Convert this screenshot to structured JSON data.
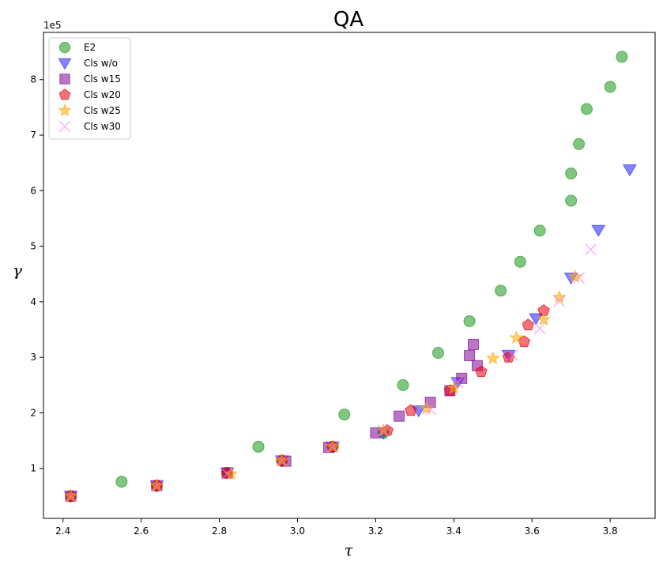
{
  "chart_data": {
    "type": "scatter",
    "title": "QA",
    "xlabel": "τ",
    "ylabel": "γ",
    "y_offset_label": "1e5",
    "xlim": [
      2.35,
      3.915
    ],
    "ylim": [
      0.1,
      8.85
    ],
    "x_ticks": [
      2.4,
      2.6,
      2.8,
      3.0,
      3.2,
      3.4,
      3.6,
      3.8
    ],
    "x_tick_labels": [
      "2.4",
      "2.6",
      "2.8",
      "3.0",
      "3.2",
      "3.4",
      "3.6",
      "3.8"
    ],
    "y_ticks": [
      1,
      2,
      3,
      4,
      5,
      6,
      7,
      8
    ],
    "y_tick_labels": [
      "1",
      "2",
      "3",
      "4",
      "5",
      "6",
      "7",
      "8"
    ],
    "grid": false,
    "legend_position": "upper-left",
    "series": [
      {
        "name": "E2",
        "marker": "circle",
        "color": "#2ca02c",
        "alpha": 0.6,
        "x": [
          2.42,
          2.55,
          2.64,
          2.82,
          2.9,
          2.96,
          3.09,
          3.12,
          3.22,
          3.27,
          3.36,
          3.44,
          3.52,
          3.57,
          3.62,
          3.7,
          3.7,
          3.72,
          3.74,
          3.8,
          3.83
        ],
        "y": [
          0.5,
          0.76,
          0.69,
          0.92,
          1.39,
          1.14,
          1.39,
          1.97,
          1.64,
          2.5,
          3.08,
          3.65,
          4.2,
          4.72,
          5.28,
          5.82,
          6.31,
          6.84,
          7.47,
          7.87,
          8.41
        ]
      },
      {
        "name": "Cls w/o",
        "marker": "triangle-down",
        "color": "#3333ff",
        "alpha": 0.6,
        "x": [
          2.42,
          2.64,
          2.82,
          2.96,
          3.09,
          3.22,
          3.31,
          3.41,
          3.54,
          3.61,
          3.7,
          3.77,
          3.85
        ],
        "y": [
          0.5,
          0.69,
          0.92,
          1.14,
          1.39,
          1.64,
          2.04,
          2.55,
          3.04,
          3.7,
          4.43,
          5.29,
          6.38
        ]
      },
      {
        "name": "Cls w15",
        "marker": "square",
        "color": "#8b1a9c",
        "alpha": 0.6,
        "x": [
          2.42,
          2.64,
          2.82,
          2.97,
          3.08,
          3.2,
          3.26,
          3.34,
          3.39,
          3.42,
          3.44,
          3.45,
          3.46
        ],
        "y": [
          0.5,
          0.69,
          0.92,
          1.13,
          1.38,
          1.64,
          1.94,
          2.19,
          2.4,
          2.62,
          3.03,
          3.23,
          2.85
        ]
      },
      {
        "name": "Cls w20",
        "marker": "pentagon",
        "color": "#e8000b",
        "alpha": 0.55,
        "x": [
          2.42,
          2.64,
          2.82,
          2.96,
          3.09,
          3.23,
          3.29,
          3.39,
          3.47,
          3.54,
          3.58,
          3.59,
          3.63
        ],
        "y": [
          0.5,
          0.69,
          0.91,
          1.14,
          1.39,
          1.68,
          2.04,
          2.4,
          2.74,
          3.0,
          3.28,
          3.58,
          3.84
        ]
      },
      {
        "name": "Cls w25",
        "marker": "star",
        "color": "#ffa500",
        "alpha": 0.55,
        "x": [
          2.42,
          2.64,
          2.83,
          2.96,
          3.09,
          3.22,
          3.33,
          3.4,
          3.5,
          3.56,
          3.63,
          3.67,
          3.71
        ],
        "y": [
          0.5,
          0.69,
          0.9,
          1.14,
          1.39,
          1.68,
          2.08,
          2.45,
          2.98,
          3.35,
          3.68,
          4.08,
          4.45
        ]
      },
      {
        "name": "Cls w30",
        "marker": "x",
        "color": "#ee82ee",
        "alpha": 0.6,
        "x": [
          2.42,
          2.64,
          2.82,
          2.96,
          3.09,
          3.22,
          3.34,
          3.41,
          3.55,
          3.62,
          3.67,
          3.72,
          3.75
        ],
        "y": [
          0.5,
          0.69,
          0.9,
          1.14,
          1.39,
          1.68,
          2.06,
          2.55,
          3.04,
          3.52,
          4.01,
          4.43,
          4.94
        ]
      }
    ]
  }
}
